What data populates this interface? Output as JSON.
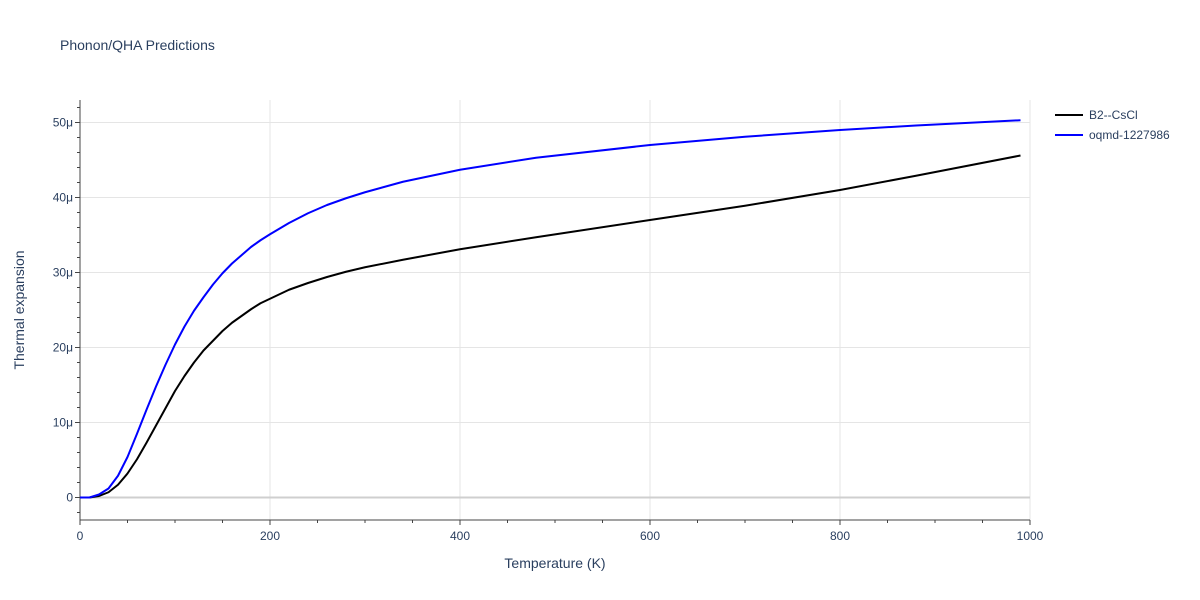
{
  "chart_data": {
    "type": "line",
    "title": "Phonon/QHA Predictions",
    "xlabel": "Temperature (K)",
    "ylabel": "Thermal expansion",
    "xlim": [
      0,
      1000
    ],
    "ylim": [
      -3e-06,
      5.3e-05
    ],
    "grid": true,
    "legend_position": "top-right",
    "x_ticks": [
      {
        "value": 0,
        "label": "0"
      },
      {
        "value": 200,
        "label": "200"
      },
      {
        "value": 400,
        "label": "400"
      },
      {
        "value": 600,
        "label": "600"
      },
      {
        "value": 800,
        "label": "800"
      },
      {
        "value": 1000,
        "label": "1000"
      }
    ],
    "y_ticks": [
      {
        "value": 0,
        "label": "0"
      },
      {
        "value": 1e-05,
        "label": "10μ"
      },
      {
        "value": 2e-05,
        "label": "20μ"
      },
      {
        "value": 3e-05,
        "label": "30μ"
      },
      {
        "value": 4e-05,
        "label": "40μ"
      },
      {
        "value": 5e-05,
        "label": "50μ"
      }
    ],
    "series": [
      {
        "name": "B2--CsCl",
        "color": "#000000",
        "x": [
          0,
          10,
          20,
          30,
          40,
          50,
          60,
          70,
          80,
          90,
          100,
          110,
          120,
          130,
          140,
          150,
          160,
          170,
          180,
          190,
          200,
          220,
          240,
          260,
          280,
          300,
          340,
          400,
          480,
          600,
          700,
          800,
          880,
          990
        ],
        "y": [
          0,
          0,
          2e-07,
          7e-07,
          1.7e-06,
          3.2e-06,
          5.1e-06,
          7.3e-06,
          9.6e-06,
          1.19e-05,
          1.42e-05,
          1.62e-05,
          1.8e-05,
          1.96e-05,
          2.09e-05,
          2.22e-05,
          2.33e-05,
          2.42e-05,
          2.51e-05,
          2.59e-05,
          2.65e-05,
          2.77e-05,
          2.86e-05,
          2.94e-05,
          3.01e-05,
          3.07e-05,
          3.17e-05,
          3.31e-05,
          3.47e-05,
          3.7e-05,
          3.89e-05,
          4.1e-05,
          4.29e-05,
          4.56e-05
        ]
      },
      {
        "name": "oqmd-1227986",
        "color": "#0000ff",
        "x": [
          0,
          10,
          20,
          30,
          40,
          50,
          60,
          70,
          80,
          90,
          100,
          110,
          120,
          130,
          140,
          150,
          160,
          170,
          180,
          190,
          200,
          220,
          240,
          260,
          280,
          300,
          340,
          400,
          480,
          600,
          700,
          800,
          880,
          990
        ],
        "y": [
          0,
          0,
          4e-07,
          1.2e-06,
          2.9e-06,
          5.4e-06,
          8.5e-06,
          1.17e-05,
          1.48e-05,
          1.77e-05,
          2.04e-05,
          2.28e-05,
          2.49e-05,
          2.67e-05,
          2.84e-05,
          2.99e-05,
          3.12e-05,
          3.23e-05,
          3.34e-05,
          3.43e-05,
          3.51e-05,
          3.66e-05,
          3.79e-05,
          3.9e-05,
          3.99e-05,
          4.07e-05,
          4.21e-05,
          4.37e-05,
          4.53e-05,
          4.7e-05,
          4.81e-05,
          4.9e-05,
          4.96e-05,
          5.03e-05
        ]
      }
    ]
  }
}
